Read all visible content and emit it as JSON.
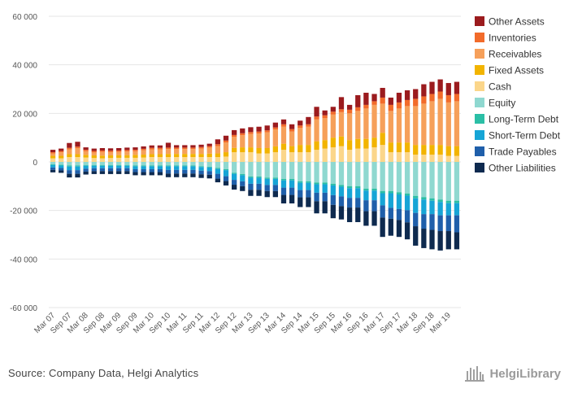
{
  "chart_data": {
    "type": "bar",
    "stacked": true,
    "x_ticks": [
      "Mar 07",
      "Sep 07",
      "Mar 08",
      "Sep 08",
      "Mar 09",
      "Sep 09",
      "Mar 10",
      "Sep 10",
      "Mar 11",
      "Sep 11",
      "Mar 12",
      "Sep 12",
      "Mar 13",
      "Sep 13",
      "Mar 14",
      "Sep 14",
      "Mar 15",
      "Sep 15",
      "Mar 16",
      "Sep 16",
      "Mar 17",
      "Sep 17",
      "Mar 18",
      "Sep 18",
      "Mar 19"
    ],
    "y_ticks": [
      "60 000",
      "40 000",
      "20 000",
      "0",
      "-20 000",
      "-40 000",
      "-60 000"
    ],
    "ylim": [
      -60000,
      60000
    ],
    "grid": true,
    "legend_position": "right",
    "categories": [
      "Mar 07",
      "Jun 07",
      "Sep 07",
      "Dec 07",
      "Mar 08",
      "Jun 08",
      "Sep 08",
      "Dec 08",
      "Mar 09",
      "Jun 09",
      "Sep 09",
      "Dec 09",
      "Mar 10",
      "Jun 10",
      "Sep 10",
      "Dec 10",
      "Mar 11",
      "Jun 11",
      "Sep 11",
      "Dec 11",
      "Mar 12",
      "Jun 12",
      "Sep 12",
      "Dec 12",
      "Mar 13",
      "Jun 13",
      "Sep 13",
      "Dec 13",
      "Mar 14",
      "Jun 14",
      "Sep 14",
      "Dec 14",
      "Mar 15",
      "Jun 15",
      "Sep 15",
      "Dec 15",
      "Mar 16",
      "Jun 16",
      "Sep 16",
      "Dec 16",
      "Mar 17",
      "Jun 17",
      "Sep 17",
      "Dec 17",
      "Mar 18",
      "Jun 18",
      "Sep 18",
      "Dec 18",
      "Mar 19",
      "Jun 19"
    ],
    "assets": [
      {
        "name": "Other Assets",
        "color": "#9b1b1e",
        "values": [
          1000,
          1000,
          2000,
          2000,
          1000,
          1000,
          1000,
          1000,
          1000,
          1000,
          1000,
          1000,
          1000,
          1000,
          2000,
          1000,
          1000,
          1000,
          1000,
          1000,
          2000,
          2000,
          2000,
          2000,
          2000,
          2000,
          2000,
          2000,
          2000,
          2000,
          2000,
          3000,
          4000,
          2000,
          2000,
          5000,
          2000,
          5000,
          5000,
          3000,
          4000,
          3000,
          4000,
          4000,
          4000,
          5000,
          5000,
          5000,
          5000,
          5000
        ]
      },
      {
        "name": "Inventories",
        "color": "#f26b2a",
        "values": [
          500,
          500,
          600,
          600,
          600,
          600,
          600,
          600,
          600,
          600,
          600,
          600,
          600,
          600,
          600,
          600,
          600,
          600,
          600,
          600,
          800,
          800,
          800,
          800,
          800,
          800,
          800,
          800,
          1000,
          1000,
          1000,
          1000,
          1200,
          1200,
          1200,
          1200,
          1500,
          1500,
          1500,
          1500,
          2500,
          2500,
          2500,
          2500,
          3000,
          3000,
          3000,
          3000,
          3000,
          3000
        ]
      },
      {
        "name": "Receivables",
        "color": "#f6a05a",
        "values": [
          1000,
          1500,
          2000,
          2500,
          1500,
          1200,
          1500,
          1300,
          1300,
          1500,
          1500,
          1800,
          2000,
          2000,
          2000,
          2000,
          2000,
          2000,
          2200,
          2500,
          3000,
          4000,
          4500,
          5000,
          5500,
          6000,
          6500,
          7000,
          7000,
          6000,
          7000,
          7500,
          9000,
          9000,
          9500,
          10000,
          11000,
          11500,
          12500,
          13500,
          12000,
          13000,
          14000,
          15000,
          16000,
          17000,
          18000,
          19000,
          18000,
          18500
        ]
      },
      {
        "name": "Fixed Assets",
        "color": "#f2b400",
        "values": [
          1000,
          1000,
          1200,
          1200,
          1100,
          1100,
          1100,
          1100,
          1100,
          1100,
          1200,
          1200,
          1200,
          1200,
          1300,
          1300,
          1300,
          1300,
          1300,
          1400,
          1500,
          1800,
          1800,
          2000,
          2000,
          2200,
          2200,
          2400,
          2500,
          2500,
          3000,
          3000,
          3500,
          3500,
          4000,
          4000,
          4000,
          4000,
          4000,
          4000,
          5000,
          4000,
          4000,
          4000,
          4000,
          4000,
          4000,
          4000,
          4000,
          4000
        ]
      },
      {
        "name": "Cash",
        "color": "#fbd68a",
        "values": [
          1500,
          1500,
          2000,
          2000,
          1800,
          1600,
          1500,
          1600,
          1700,
          1700,
          1700,
          1800,
          2000,
          2000,
          2000,
          2000,
          2000,
          2000,
          2000,
          2000,
          2000,
          2200,
          4000,
          4000,
          4000,
          3500,
          3500,
          4000,
          5000,
          4000,
          4000,
          4000,
          5000,
          5500,
          6000,
          6500,
          5000,
          5500,
          5500,
          6000,
          7000,
          4000,
          4000,
          4000,
          3000,
          3000,
          3000,
          3000,
          2500,
          2500
        ]
      }
    ],
    "liabilities": [
      {
        "name": "Equity",
        "color": "#8fd8d0",
        "values": [
          -1000,
          -1200,
          -1500,
          -1500,
          -1300,
          -1300,
          -1300,
          -1300,
          -1300,
          -1300,
          -1500,
          -1500,
          -1500,
          -1500,
          -1500,
          -1500,
          -1500,
          -1500,
          -1800,
          -2000,
          -2500,
          -3000,
          -4500,
          -5000,
          -6000,
          -6000,
          -6500,
          -6500,
          -7000,
          -7000,
          -8000,
          -8000,
          -8500,
          -8500,
          -9000,
          -9500,
          -10000,
          -10000,
          -11000,
          -11000,
          -12000,
          -12000,
          -12500,
          -13000,
          -14000,
          -14500,
          -15000,
          -15500,
          -16000,
          -16000
        ]
      },
      {
        "name": "Long-Term Debt",
        "color": "#2bbfa6",
        "values": [
          -300,
          -300,
          -400,
          -400,
          -300,
          -300,
          -300,
          -300,
          -300,
          -300,
          -300,
          -300,
          -300,
          -300,
          -300,
          -300,
          -300,
          -300,
          -300,
          -300,
          -400,
          -400,
          -400,
          -500,
          -500,
          -500,
          -500,
          -500,
          -600,
          -600,
          -600,
          -600,
          -700,
          -700,
          -700,
          -700,
          -800,
          -800,
          -800,
          -800,
          -900,
          -900,
          -900,
          -900,
          -1000,
          -1000,
          -1000,
          -1000,
          -1000,
          -1000
        ]
      },
      {
        "name": "Short-Term Debt",
        "color": "#16a5d6",
        "values": [
          -1000,
          -1000,
          -1500,
          -1500,
          -1200,
          -1000,
          -1000,
          -1000,
          -1000,
          -1000,
          -1200,
          -1200,
          -1200,
          -1200,
          -1500,
          -1500,
          -1500,
          -1500,
          -1500,
          -1500,
          -2000,
          -2500,
          -2500,
          -2500,
          -2500,
          -2500,
          -2500,
          -2500,
          -3000,
          -3000,
          -3000,
          -3000,
          -3500,
          -3500,
          -4000,
          -4000,
          -4000,
          -4000,
          -4000,
          -4000,
          -5000,
          -6000,
          -6000,
          -6000,
          -6000,
          -6000,
          -5500,
          -5500,
          -5000,
          -5000
        ]
      },
      {
        "name": "Trade Payables",
        "color": "#1f5faa",
        "values": [
          -1000,
          -1000,
          -1500,
          -1500,
          -1200,
          -1200,
          -1200,
          -1200,
          -1200,
          -1200,
          -1200,
          -1200,
          -1200,
          -1200,
          -1500,
          -1500,
          -1500,
          -1500,
          -1500,
          -1500,
          -2000,
          -2000,
          -2000,
          -2000,
          -2500,
          -2500,
          -2500,
          -2500,
          -3000,
          -3000,
          -3000,
          -3000,
          -3500,
          -3500,
          -4000,
          -4000,
          -4000,
          -4000,
          -4500,
          -4500,
          -5000,
          -4500,
          -4500,
          -5000,
          -5500,
          -6000,
          -6500,
          -6500,
          -6500,
          -7000
        ]
      },
      {
        "name": "Other Liabilities",
        "color": "#0e2a4f",
        "values": [
          -1000,
          -1000,
          -1500,
          -1500,
          -1200,
          -1200,
          -1200,
          -1200,
          -1200,
          -1200,
          -1300,
          -1300,
          -1300,
          -1300,
          -1500,
          -1500,
          -1500,
          -1500,
          -1500,
          -1500,
          -1500,
          -1800,
          -2000,
          -2000,
          -2500,
          -2500,
          -2500,
          -2500,
          -3500,
          -3500,
          -4000,
          -4000,
          -5000,
          -5000,
          -5500,
          -5500,
          -6000,
          -6000,
          -6000,
          -6000,
          -8000,
          -7000,
          -7000,
          -7000,
          -8000,
          -8000,
          -8000,
          -8000,
          -7500,
          -7000
        ]
      }
    ]
  },
  "legend": [
    {
      "label": "Other Assets",
      "color": "#9b1b1e"
    },
    {
      "label": "Inventories",
      "color": "#f26b2a"
    },
    {
      "label": "Receivables",
      "color": "#f6a05a"
    },
    {
      "label": "Fixed Assets",
      "color": "#f2b400"
    },
    {
      "label": "Cash",
      "color": "#fbd68a"
    },
    {
      "label": "Equity",
      "color": "#8fd8d0"
    },
    {
      "label": "Long-Term Debt",
      "color": "#2bbfa6"
    },
    {
      "label": "Short-Term Debt",
      "color": "#16a5d6"
    },
    {
      "label": "Trade Payables",
      "color": "#1f5faa"
    },
    {
      "label": "Other Liabilities",
      "color": "#0e2a4f"
    }
  ],
  "footer": {
    "source": "Source: Company Data, Helgi Analytics",
    "brand": "HelgiLibrary",
    "brand_icon": "helgi-library-logo-icon"
  }
}
